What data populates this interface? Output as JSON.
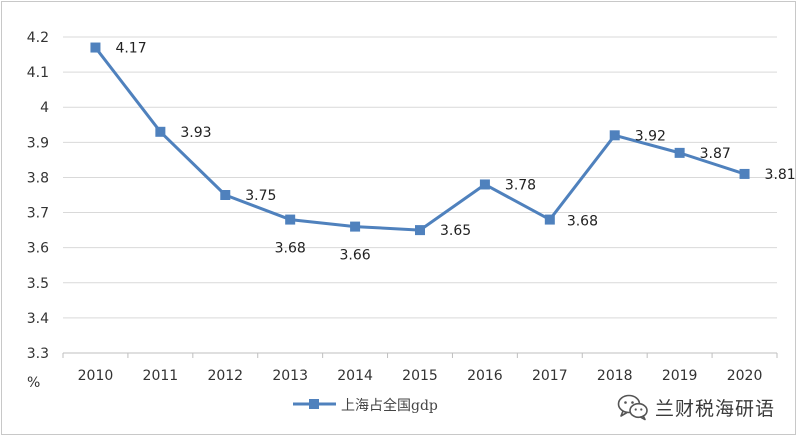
{
  "chart_data": {
    "type": "line",
    "categories": [
      "2010",
      "2011",
      "2012",
      "2013",
      "2014",
      "2015",
      "2016",
      "2017",
      "2018",
      "2019",
      "2020"
    ],
    "series": [
      {
        "name": "上海占全国gdp",
        "values": [
          4.17,
          3.93,
          3.75,
          3.68,
          3.66,
          3.65,
          3.78,
          3.68,
          3.92,
          3.87,
          3.81
        ],
        "data_labels": [
          "4.17",
          "3.93",
          "3.75",
          "3.68",
          "3.66",
          "3.65",
          "3.78",
          "3.68",
          "3.92",
          "3.87",
          "3.81"
        ],
        "color": "#4F81BD",
        "marker": "square"
      }
    ],
    "y_ticks": [
      "4.2",
      "4.1",
      "4",
      "3.9",
      "3.8",
      "3.7",
      "3.6",
      "3.5",
      "3.4",
      "3.3"
    ],
    "ylim": [
      3.3,
      4.2
    ],
    "ylabel": "%",
    "xlabel": "",
    "title": "",
    "grid": "horizontal",
    "grid_color": "#d9d9d9",
    "legend_position": "bottom"
  },
  "watermark": {
    "icon": "wechat-icon",
    "text": "兰财税海研语"
  }
}
